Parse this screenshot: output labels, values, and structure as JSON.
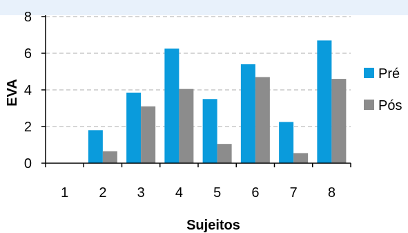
{
  "chart_data": {
    "type": "bar",
    "title": "",
    "xlabel": "Sujeitos",
    "ylabel": "EVA",
    "categories": [
      "1",
      "2",
      "3",
      "4",
      "5",
      "6",
      "7",
      "8"
    ],
    "ylim": [
      0,
      8
    ],
    "yticks": [
      0,
      2,
      4,
      6,
      8
    ],
    "grid": true,
    "legend_position": "right",
    "series": [
      {
        "name": "Pré",
        "color": "#0a9bdc",
        "values": [
          0,
          1.8,
          3.85,
          6.25,
          3.5,
          5.4,
          2.25,
          6.7
        ]
      },
      {
        "name": "Pós",
        "color": "#8c8c8c",
        "values": [
          0,
          0.65,
          3.1,
          4.05,
          1.05,
          4.7,
          0.55,
          4.6
        ]
      }
    ]
  }
}
